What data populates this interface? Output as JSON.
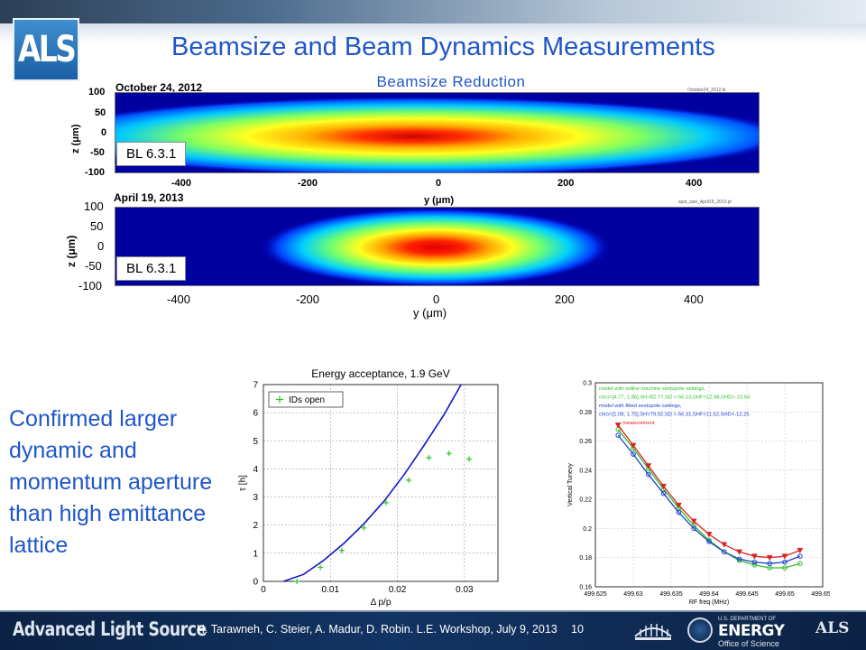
{
  "header": {
    "logo": "ALS",
    "title": "Beamsize and Beam Dynamics Measurements"
  },
  "beam_panel": {
    "title": "Beamsize Reduction",
    "top": {
      "date": "October 24, 2012",
      "file": "October24_2012.bi",
      "label": "BL 6.3.1"
    },
    "bottom": {
      "date": "April 19, 2013",
      "file": "spot_size_April19_2013.pl",
      "label": "BL 6.3.1"
    },
    "y_ticks": [
      "100",
      "50",
      "0",
      "-50",
      "-100"
    ],
    "x_ticks": [
      "-400",
      "-200",
      "0",
      "200",
      "400"
    ],
    "ylabel_top": "z (μm)",
    "xlabel_top": "y (μm)",
    "ylabel_bottom": "z (μm)",
    "xlabel_bottom": "y (μm)"
  },
  "text_block": "Confirmed larger dynamic and momentum aperture than high emittance lattice",
  "footer": {
    "brand": "Advanced Light Source",
    "credit": "H. Tarawneh,  C. Steier, A. Madur, D. Robin. L.E. Workshop, July 9, 2013",
    "page": "10",
    "doe_small": "U.S. DEPARTMENT OF",
    "doe_big": "ENERGY",
    "doe_office": "Office of Science",
    "als_small_logo": "ALS"
  },
  "colors": {
    "title_blue": "#1f56c8",
    "footer_navy": "#0c2244",
    "curve_blue": "#1414c8",
    "marker_green": "#22cc22",
    "tune_red": "#e02020",
    "tune_green": "#30c030",
    "tune_blue": "#2040d0"
  },
  "chart_data": [
    {
      "type": "scatter",
      "title": "Energy acceptance, 1.9 GeV",
      "xlabel": "Δ p/p",
      "ylabel": "τ [h]",
      "xlim": [
        0,
        0.035
      ],
      "ylim": [
        0,
        7
      ],
      "x_ticks": [
        "0",
        "0.01",
        "0.02",
        "0.03"
      ],
      "y_ticks": [
        "0",
        "1",
        "2",
        "3",
        "4",
        "5",
        "6",
        "7"
      ],
      "grid": true,
      "legend_position": "top-left",
      "series": [
        {
          "name": "IDs open",
          "marker": "plus",
          "x": [
            0.005,
            0.0085,
            0.0117,
            0.015,
            0.0183,
            0.0217,
            0.0247,
            0.0277,
            0.0307
          ],
          "y": [
            0.0,
            0.5,
            1.1,
            1.9,
            2.8,
            3.6,
            4.4,
            4.55,
            4.35
          ]
        }
      ],
      "fit_curve": {
        "x": [
          0.003,
          0.006,
          0.009,
          0.012,
          0.015,
          0.018,
          0.021,
          0.024,
          0.027,
          0.0295
        ],
        "y": [
          0.0,
          0.25,
          0.75,
          1.35,
          2.05,
          2.85,
          3.8,
          4.85,
          5.95,
          7.0
        ]
      }
    },
    {
      "type": "line",
      "xlabel": "RF freq (MHz)",
      "ylabel": "Vertical Tunevy",
      "xlim": [
        499.625,
        499.655
      ],
      "ylim": [
        0.16,
        0.3
      ],
      "x_ticks": [
        "499.625",
        "499.63",
        "499.635",
        "499.64",
        "499.645",
        "499.65",
        "499.655"
      ],
      "y_ticks": [
        "0.3",
        "0.28",
        "0.26",
        "0.24",
        "0.22",
        "0.2",
        "0.18",
        "0.16"
      ],
      "grid": true,
      "legend_position": "top-left",
      "legend_lines": [
        "model with online machine sextupole settings,",
        "chro=[4.77, 1.96],SH=82.77,SD =-56.13,SHF=12.98,SHD=-13.64",
        "model with fitted sextupole settings,",
        "chro=[1.08, 1.75],SH=79.92,SD =-56.31,SHF=11.52,SHD=-12.25",
        "measurement"
      ],
      "x": [
        499.628,
        499.63,
        499.632,
        499.634,
        499.636,
        499.638,
        499.64,
        499.642,
        499.644,
        499.646,
        499.648,
        499.65,
        499.652
      ],
      "series": [
        {
          "name": "model with online machine sextupole settings",
          "color": "#30c030",
          "values": [
            0.268,
            0.255,
            0.241,
            0.227,
            0.214,
            0.202,
            0.192,
            0.184,
            0.178,
            0.175,
            0.173,
            0.173,
            0.176
          ]
        },
        {
          "name": "model with fitted sextupole settings",
          "color": "#2040d0",
          "values": [
            0.264,
            0.251,
            0.237,
            0.224,
            0.211,
            0.2,
            0.191,
            0.184,
            0.179,
            0.177,
            0.176,
            0.177,
            0.181
          ]
        },
        {
          "name": "measurement",
          "color": "#e02020",
          "values": [
            0.271,
            0.257,
            0.243,
            0.229,
            0.216,
            0.205,
            0.196,
            0.189,
            0.184,
            0.181,
            0.18,
            0.181,
            0.185
          ]
        }
      ]
    }
  ]
}
